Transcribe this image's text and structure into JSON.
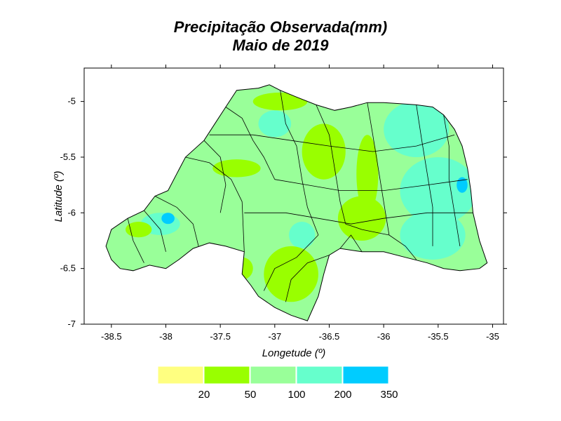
{
  "title": {
    "line1": "Precipitação Observada(mm)",
    "line2": "Maio de  2019"
  },
  "axes": {
    "xlabel": "Longetude (º)",
    "ylabel": "Latitude (º)",
    "xlim": [
      -38.75,
      -34.9
    ],
    "ylim": [
      -7.0,
      -4.7
    ],
    "xticks": [
      {
        "value": -38.5,
        "label": "-38.5"
      },
      {
        "value": -38,
        "label": "-38"
      },
      {
        "value": -37.5,
        "label": "-37.5"
      },
      {
        "value": -37,
        "label": "-37"
      },
      {
        "value": -36.5,
        "label": "-36.5"
      },
      {
        "value": -36,
        "label": "-36"
      },
      {
        "value": -35.5,
        "label": "-35.5"
      },
      {
        "value": -35,
        "label": "-35"
      }
    ],
    "yticks": [
      {
        "value": -5,
        "label": "-5"
      },
      {
        "value": -5.5,
        "label": "-5.5"
      },
      {
        "value": -6,
        "label": "-6"
      },
      {
        "value": -6.5,
        "label": "-6.5"
      },
      {
        "value": -7,
        "label": "-7"
      }
    ]
  },
  "legend": {
    "bins": [
      {
        "color": "#ffff80",
        "label": ""
      },
      {
        "color": "#99ff00",
        "label": "20"
      },
      {
        "color": "#99ff99",
        "label": "50"
      },
      {
        "color": "#66ffcc",
        "label": "100"
      },
      {
        "color": "#00ccff",
        "label": "200"
      }
    ],
    "end_label": "350"
  },
  "map": {
    "base_color": "#99ff99",
    "outline": [
      [
        -38.55,
        -6.3
      ],
      [
        -38.5,
        -6.15
      ],
      [
        -38.35,
        -6.05
      ],
      [
        -38.2,
        -5.98
      ],
      [
        -38.1,
        -5.85
      ],
      [
        -37.98,
        -5.8
      ],
      [
        -37.9,
        -5.65
      ],
      [
        -37.82,
        -5.5
      ],
      [
        -37.65,
        -5.35
      ],
      [
        -37.55,
        -5.2
      ],
      [
        -37.45,
        -5.05
      ],
      [
        -37.35,
        -4.9
      ],
      [
        -37.15,
        -4.88
      ],
      [
        -37.05,
        -4.85
      ],
      [
        -36.95,
        -4.9
      ],
      [
        -36.8,
        -4.96
      ],
      [
        -36.62,
        -5.03
      ],
      [
        -36.45,
        -5.08
      ],
      [
        -36.3,
        -5.05
      ],
      [
        -36.15,
        -5.01
      ],
      [
        -36.0,
        -5.01
      ],
      [
        -35.85,
        -5.02
      ],
      [
        -35.7,
        -5.03
      ],
      [
        -35.55,
        -5.05
      ],
      [
        -35.45,
        -5.12
      ],
      [
        -35.35,
        -5.25
      ],
      [
        -35.28,
        -5.4
      ],
      [
        -35.23,
        -5.6
      ],
      [
        -35.2,
        -5.8
      ],
      [
        -35.18,
        -6.0
      ],
      [
        -35.12,
        -6.25
      ],
      [
        -35.05,
        -6.45
      ],
      [
        -35.12,
        -6.5
      ],
      [
        -35.3,
        -6.52
      ],
      [
        -35.45,
        -6.5
      ],
      [
        -35.6,
        -6.45
      ],
      [
        -35.8,
        -6.4
      ],
      [
        -36.0,
        -6.35
      ],
      [
        -36.2,
        -6.35
      ],
      [
        -36.4,
        -6.32
      ],
      [
        -36.5,
        -6.38
      ],
      [
        -36.55,
        -6.55
      ],
      [
        -36.6,
        -6.75
      ],
      [
        -36.7,
        -6.97
      ],
      [
        -36.85,
        -6.92
      ],
      [
        -37.0,
        -6.85
      ],
      [
        -37.15,
        -6.75
      ],
      [
        -37.22,
        -6.65
      ],
      [
        -37.3,
        -6.55
      ],
      [
        -37.28,
        -6.35
      ],
      [
        -37.45,
        -6.3
      ],
      [
        -37.6,
        -6.27
      ],
      [
        -37.75,
        -6.32
      ],
      [
        -37.88,
        -6.42
      ],
      [
        -38.0,
        -6.5
      ],
      [
        -38.15,
        -6.47
      ],
      [
        -38.3,
        -6.52
      ],
      [
        -38.42,
        -6.5
      ],
      [
        -38.5,
        -6.42
      ]
    ],
    "zones": [
      {
        "kind": "ellipse",
        "color": "#66ffcc",
        "cx": -37.0,
        "cy": -5.2,
        "rx": 0.15,
        "ry": 0.12
      },
      {
        "kind": "ellipse",
        "color": "#66ffcc",
        "cx": -35.7,
        "cy": -5.25,
        "rx": 0.3,
        "ry": 0.25
      },
      {
        "kind": "ellipse",
        "color": "#66ffcc",
        "cx": -35.5,
        "cy": -5.8,
        "rx": 0.35,
        "ry": 0.3
      },
      {
        "kind": "ellipse",
        "color": "#66ffcc",
        "cx": -35.55,
        "cy": -6.2,
        "rx": 0.3,
        "ry": 0.22
      },
      {
        "kind": "ellipse",
        "color": "#66ffcc",
        "cx": -36.75,
        "cy": -6.2,
        "rx": 0.12,
        "ry": 0.12
      },
      {
        "kind": "ellipse",
        "color": "#66ffcc",
        "cx": -38.05,
        "cy": -6.1,
        "rx": 0.18,
        "ry": 0.1
      },
      {
        "kind": "ellipse",
        "color": "#99ff00",
        "cx": -36.95,
        "cy": -5.0,
        "rx": 0.25,
        "ry": 0.08
      },
      {
        "kind": "ellipse",
        "color": "#99ff00",
        "cx": -36.55,
        "cy": -5.45,
        "rx": 0.2,
        "ry": 0.25
      },
      {
        "kind": "ellipse",
        "color": "#99ff00",
        "cx": -36.15,
        "cy": -5.65,
        "rx": 0.1,
        "ry": 0.35
      },
      {
        "kind": "ellipse",
        "color": "#99ff00",
        "cx": -36.2,
        "cy": -6.05,
        "rx": 0.22,
        "ry": 0.2
      },
      {
        "kind": "ellipse",
        "color": "#99ff00",
        "cx": -36.85,
        "cy": -6.55,
        "rx": 0.25,
        "ry": 0.25
      },
      {
        "kind": "ellipse",
        "color": "#99ff00",
        "cx": -37.35,
        "cy": -5.6,
        "rx": 0.22,
        "ry": 0.08
      },
      {
        "kind": "ellipse",
        "color": "#99ff00",
        "cx": -37.3,
        "cy": -6.5,
        "rx": 0.1,
        "ry": 0.1
      },
      {
        "kind": "ellipse",
        "color": "#99ff00",
        "cx": -38.25,
        "cy": -6.15,
        "rx": 0.12,
        "ry": 0.07
      },
      {
        "kind": "ellipse",
        "color": "#00ccff",
        "cx": -37.98,
        "cy": -6.05,
        "rx": 0.06,
        "ry": 0.05
      },
      {
        "kind": "ellipse",
        "color": "#00ccff",
        "cx": -35.28,
        "cy": -5.75,
        "rx": 0.05,
        "ry": 0.07
      }
    ],
    "boundaries": [
      [
        [
          -38.1,
          -5.85
        ],
        [
          -37.9,
          -5.95
        ],
        [
          -37.75,
          -6.1
        ],
        [
          -37.7,
          -6.3
        ]
      ],
      [
        [
          -37.82,
          -5.5
        ],
        [
          -37.6,
          -5.55
        ],
        [
          -37.4,
          -5.7
        ],
        [
          -37.3,
          -5.9
        ],
        [
          -37.28,
          -6.35
        ]
      ],
      [
        [
          -37.45,
          -5.05
        ],
        [
          -37.3,
          -5.15
        ],
        [
          -37.2,
          -5.35
        ],
        [
          -37.1,
          -5.5
        ],
        [
          -37.0,
          -5.7
        ]
      ],
      [
        [
          -36.95,
          -4.9
        ],
        [
          -36.9,
          -5.2
        ],
        [
          -36.8,
          -5.4
        ],
        [
          -36.75,
          -5.7
        ],
        [
          -36.7,
          -5.95
        ],
        [
          -36.6,
          -6.2
        ]
      ],
      [
        [
          -36.62,
          -5.03
        ],
        [
          -36.5,
          -5.3
        ],
        [
          -36.45,
          -5.6
        ],
        [
          -36.4,
          -5.9
        ],
        [
          -36.35,
          -6.1
        ]
      ],
      [
        [
          -36.15,
          -5.01
        ],
        [
          -36.1,
          -5.3
        ],
        [
          -36.05,
          -5.6
        ],
        [
          -36.0,
          -5.9
        ],
        [
          -35.95,
          -6.2
        ]
      ],
      [
        [
          -35.7,
          -5.03
        ],
        [
          -35.65,
          -5.35
        ],
        [
          -35.6,
          -5.65
        ],
        [
          -35.55,
          -5.95
        ],
        [
          -35.55,
          -6.3
        ]
      ],
      [
        [
          -35.45,
          -5.12
        ],
        [
          -35.4,
          -5.4
        ],
        [
          -35.4,
          -5.7
        ],
        [
          -35.35,
          -6.0
        ],
        [
          -35.3,
          -6.3
        ]
      ],
      [
        [
          -37.0,
          -5.7
        ],
        [
          -36.7,
          -5.75
        ],
        [
          -36.4,
          -5.8
        ],
        [
          -36.0,
          -5.8
        ],
        [
          -35.6,
          -5.75
        ],
        [
          -35.23,
          -5.7
        ]
      ],
      [
        [
          -37.28,
          -6.0
        ],
        [
          -36.9,
          -6.0
        ],
        [
          -36.6,
          -6.05
        ],
        [
          -36.3,
          -6.1
        ],
        [
          -36.0,
          -6.05
        ],
        [
          -35.6,
          -6.0
        ],
        [
          -35.18,
          -6.0
        ]
      ],
      [
        [
          -37.6,
          -5.3
        ],
        [
          -37.2,
          -5.3
        ],
        [
          -36.85,
          -5.35
        ],
        [
          -36.5,
          -5.4
        ],
        [
          -36.1,
          -5.45
        ],
        [
          -35.7,
          -5.4
        ],
        [
          -35.35,
          -5.3
        ]
      ],
      [
        [
          -36.6,
          -6.2
        ],
        [
          -36.8,
          -6.4
        ],
        [
          -37.0,
          -6.5
        ],
        [
          -37.1,
          -6.7
        ]
      ],
      [
        [
          -36.5,
          -6.38
        ],
        [
          -36.7,
          -6.45
        ],
        [
          -36.85,
          -6.6
        ],
        [
          -36.9,
          -6.8
        ]
      ],
      [
        [
          -38.35,
          -6.05
        ],
        [
          -38.3,
          -6.25
        ],
        [
          -38.2,
          -6.45
        ]
      ],
      [
        [
          -38.2,
          -5.98
        ],
        [
          -38.05,
          -6.15
        ],
        [
          -38.0,
          -6.35
        ]
      ],
      [
        [
          -37.65,
          -5.35
        ],
        [
          -37.5,
          -5.5
        ],
        [
          -37.45,
          -5.75
        ],
        [
          -37.5,
          -6.0
        ]
      ],
      [
        [
          -36.4,
          -6.32
        ],
        [
          -36.3,
          -6.2
        ],
        [
          -36.2,
          -6.35
        ]
      ],
      [
        [
          -35.95,
          -6.2
        ],
        [
          -35.8,
          -6.3
        ],
        [
          -35.7,
          -6.42
        ]
      ],
      [
        [
          -36.35,
          -6.1
        ],
        [
          -36.2,
          -6.15
        ],
        [
          -35.95,
          -6.2
        ]
      ]
    ]
  }
}
